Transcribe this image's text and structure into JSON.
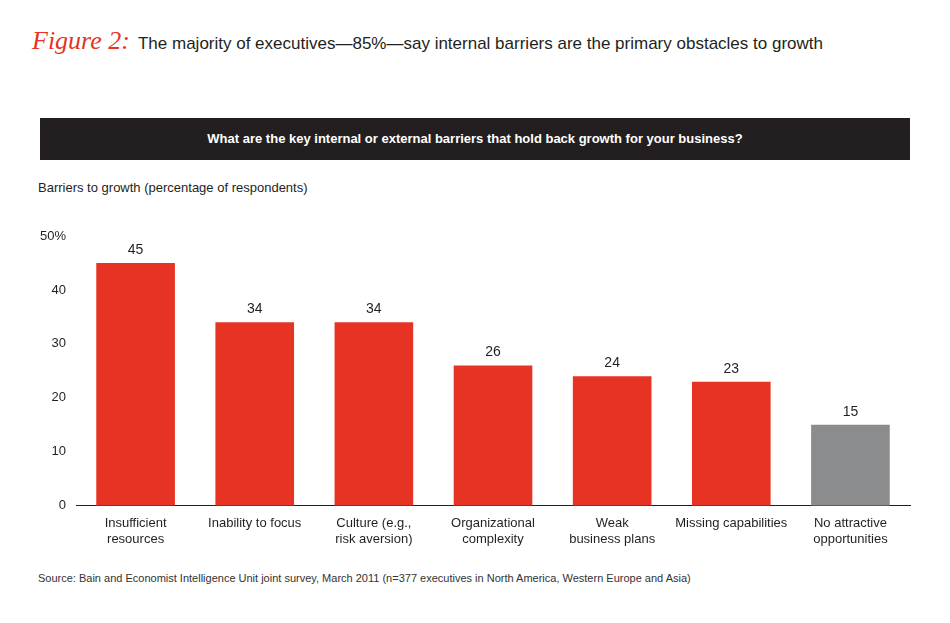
{
  "chart_data": {
    "type": "bar",
    "figure_label": "Figure 2:",
    "title": "The majority of executives—85%—say internal barriers are the primary obstacles to growth",
    "subtitle": "What are the key internal or external barriers that hold back growth for your business?",
    "y_label": "Barriers to growth (percentage of respondents)",
    "source": "Source: Bain and Economist Intelligence Unit joint survey, March 2011 (n=377 executives in North America, Western Europe and Asia)",
    "categories": [
      "Insufficient resources",
      "Inability to focus",
      "Culture (e.g., risk aversion)",
      "Organizational complexity",
      "Weak business plans",
      "Missing capabilities",
      "No attractive opportunities"
    ],
    "values": [
      45,
      34,
      34,
      26,
      24,
      23,
      15
    ],
    "colors": [
      "#e63323",
      "#e63323",
      "#e63323",
      "#e63323",
      "#e63323",
      "#e63323",
      "#8a8c8e"
    ],
    "ylim": [
      0,
      50
    ],
    "yticks": [
      0,
      10,
      20,
      30,
      40,
      {
        "value": 50,
        "label": "50%"
      }
    ],
    "grid": false,
    "data_labels": true
  }
}
